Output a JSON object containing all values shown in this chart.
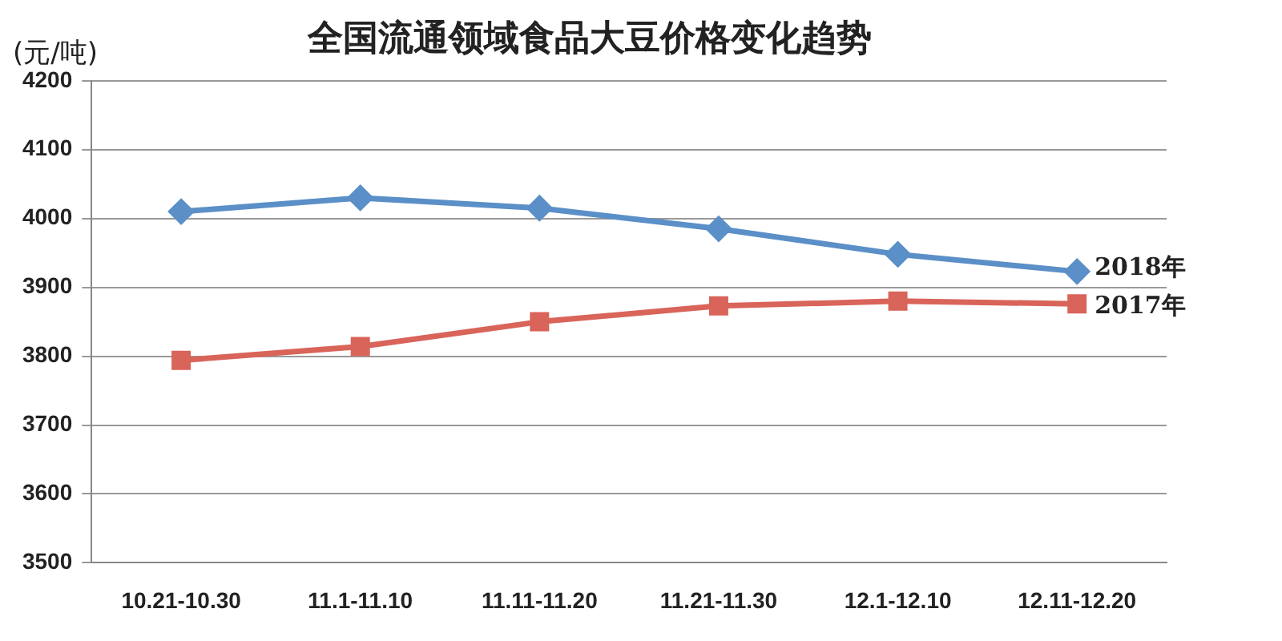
{
  "chart_data": {
    "type": "line",
    "title": "全国流通领域食品大豆价格变化趋势",
    "ylabel": "(元/吨)",
    "categories": [
      "10.21-10.30",
      "11.1-11.10",
      "11.11-11.20",
      "11.21-11.30",
      "12.1-12.10",
      "12.11-12.20"
    ],
    "series": [
      {
        "name": "2018年",
        "color": "#5b8fc7",
        "marker": "diamond",
        "values": [
          4010,
          4030,
          4015,
          3985,
          3948,
          3923
        ]
      },
      {
        "name": "2017年",
        "color": "#d9645a",
        "marker": "square",
        "values": [
          3794,
          3814,
          3850,
          3873,
          3880,
          3876
        ]
      }
    ],
    "ylim": [
      3500,
      4200
    ],
    "yticks": [
      3500,
      3600,
      3700,
      3800,
      3900,
      4000,
      4100,
      4200
    ],
    "grid": "y",
    "legend": false
  }
}
